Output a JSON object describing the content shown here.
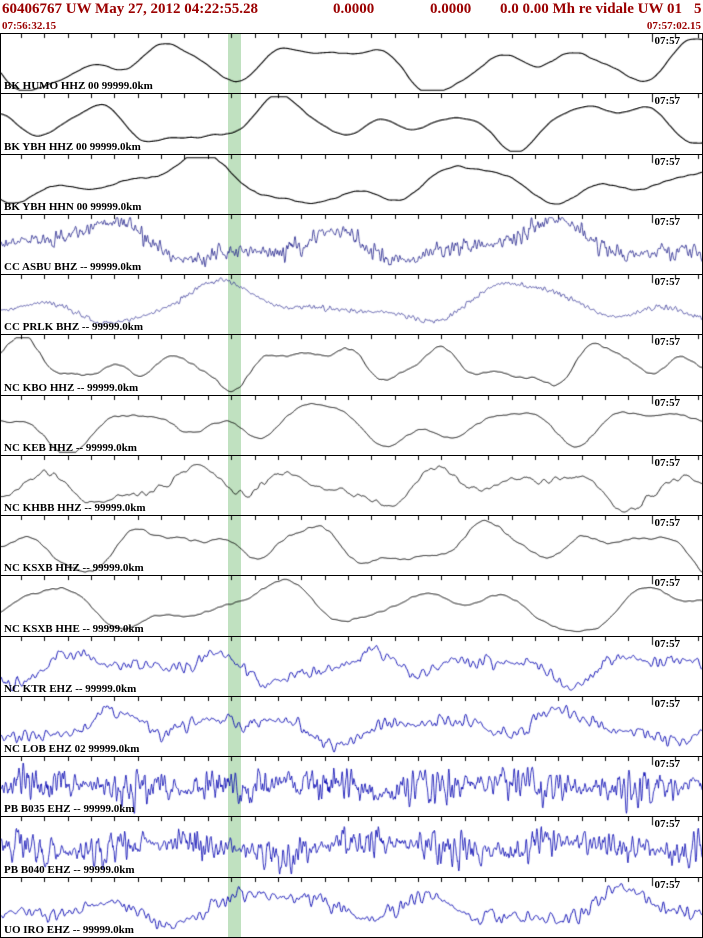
{
  "header": {
    "title": "60406767 UW May 27, 2012 04:22:55.28",
    "field1": "0.0000",
    "field2": "0.0000",
    "field3": "0.0 0.00 Mh re vidale UW 01",
    "field4": "5"
  },
  "timebar": {
    "start": "07:56:32.15",
    "end": "07:57:02.15",
    "start_sec": 32.15,
    "span_sec": 30
  },
  "colors": {
    "header_text": "#9b0000",
    "highlight_band": "rgba(130,195,130,0.5)",
    "trace_black": "#000000",
    "trace_blue": "#0000b0",
    "trace_navy": "#22228c"
  },
  "panels": [
    {
      "label": "BK HUMO HHZ 00 99999.0km",
      "minute_label": "07:57",
      "trace": {
        "seed": 11,
        "color": "#000000",
        "lw": 1.1,
        "comps": [
          [
            3.6,
            0.5
          ],
          [
            6.8,
            0.35
          ],
          [
            1.7,
            0.28
          ],
          [
            12,
            0.1
          ]
        ],
        "noise_amp": 0.03,
        "noise_smooth": 3,
        "noise_mod": 0
      }
    },
    {
      "label": "BK YBH HHZ 00 99999.0km",
      "minute_label": "07:57",
      "trace": {
        "seed": 22,
        "color": "#000000",
        "lw": 1.1,
        "comps": [
          [
            4.2,
            0.45
          ],
          [
            7.5,
            0.3
          ],
          [
            2.3,
            0.3
          ],
          [
            13,
            0.08
          ]
        ],
        "noise_amp": 0.03,
        "noise_smooth": 3,
        "noise_mod": 0
      }
    },
    {
      "label": "BK YBH HHN 00 99999.0km",
      "minute_label": "07:57",
      "trace": {
        "seed": 33,
        "color": "#000000",
        "lw": 1.1,
        "comps": [
          [
            2.6,
            0.55
          ],
          [
            5.2,
            0.3
          ],
          [
            9,
            0.15
          ],
          [
            1.3,
            0.2
          ]
        ],
        "noise_amp": 0.04,
        "noise_smooth": 3,
        "noise_mod": 0
      }
    },
    {
      "label": "CC ASBU BHZ -- 99999.0km",
      "minute_label": "07:57",
      "trace": {
        "seed": 44,
        "color": "#22228c",
        "lw": 0.8,
        "comps": [
          [
            3.1,
            0.45
          ],
          [
            6.4,
            0.25
          ],
          [
            1.5,
            0.2
          ]
        ],
        "noise_amp": 0.5,
        "noise_smooth": 0,
        "noise_mod": 4.5
      }
    },
    {
      "label": "CC PRLK BHZ -- 99999.0km",
      "minute_label": "07:57",
      "trace": {
        "seed": 55,
        "color": "#22228c",
        "lw": 0.7,
        "comps": [
          [
            2.4,
            0.5
          ],
          [
            4.6,
            0.3
          ],
          [
            8,
            0.1
          ]
        ],
        "noise_amp": 0.15,
        "noise_smooth": 0,
        "noise_mod": 3
      }
    },
    {
      "label": "NC KBO HHZ -- 99999.0km",
      "minute_label": "07:57",
      "trace": {
        "seed": 66,
        "color": "#000000",
        "lw": 1.0,
        "comps": [
          [
            4.8,
            0.4
          ],
          [
            8.5,
            0.3
          ],
          [
            2.1,
            0.25
          ],
          [
            15,
            0.12
          ]
        ],
        "noise_amp": 0.06,
        "noise_smooth": 2,
        "noise_mod": 0
      }
    },
    {
      "label": "NC KEB HHZ -- 99999.0km",
      "minute_label": "07:57",
      "trace": {
        "seed": 77,
        "color": "#000000",
        "lw": 1.0,
        "comps": [
          [
            4,
            0.45
          ],
          [
            7,
            0.3
          ],
          [
            11,
            0.15
          ],
          [
            2,
            0.2
          ]
        ],
        "noise_amp": 0.05,
        "noise_smooth": 2,
        "noise_mod": 0
      }
    },
    {
      "label": "NC KHBB HHZ -- 99999.0km",
      "minute_label": "07:57",
      "trace": {
        "seed": 88,
        "color": "#000000",
        "lw": 0.9,
        "comps": [
          [
            5.5,
            0.35
          ],
          [
            9,
            0.25
          ],
          [
            2.6,
            0.3
          ]
        ],
        "noise_amp": 0.2,
        "noise_smooth": 2,
        "noise_mod": 3.5
      }
    },
    {
      "label": "NC KSXB HHZ -- 99999.0km",
      "minute_label": "07:57",
      "trace": {
        "seed": 99,
        "color": "#000000",
        "lw": 1.0,
        "comps": [
          [
            4.4,
            0.45
          ],
          [
            7.8,
            0.3
          ],
          [
            2.2,
            0.25
          ],
          [
            14,
            0.1
          ]
        ],
        "noise_amp": 0.06,
        "noise_smooth": 2,
        "noise_mod": 0
      }
    },
    {
      "label": "NC KSXB HHE -- 99999.0km",
      "minute_label": "07:57",
      "trace": {
        "seed": 111,
        "color": "#000000",
        "lw": 1.0,
        "comps": [
          [
            3.4,
            0.5
          ],
          [
            6,
            0.3
          ],
          [
            10,
            0.12
          ],
          [
            1.6,
            0.2
          ]
        ],
        "noise_amp": 0.05,
        "noise_smooth": 2,
        "noise_mod": 0
      }
    },
    {
      "label": "NC KTR EHZ -- 99999.0km",
      "minute_label": "07:57",
      "trace": {
        "seed": 122,
        "color": "#0000b0",
        "lw": 0.9,
        "comps": [
          [
            5,
            0.3
          ],
          [
            9,
            0.2
          ],
          [
            2.5,
            0.2
          ]
        ],
        "noise_amp": 0.45,
        "noise_smooth": 1,
        "noise_mod": 6
      }
    },
    {
      "label": "NC LOB EHZ 02 99999.0km",
      "minute_label": "07:57",
      "trace": {
        "seed": 133,
        "color": "#0000b0",
        "lw": 0.9,
        "comps": [
          [
            4.5,
            0.3
          ],
          [
            8,
            0.2
          ],
          [
            2,
            0.2
          ]
        ],
        "noise_amp": 0.5,
        "noise_smooth": 1,
        "noise_mod": 5
      }
    },
    {
      "label": "PB B035 EHZ -- 99999.0km",
      "minute_label": "07:57",
      "trace": {
        "seed": 144,
        "color": "#0000b0",
        "lw": 0.8,
        "comps": [
          [
            3,
            0.15
          ]
        ],
        "noise_amp": 0.95,
        "noise_smooth": 0,
        "noise_mod": 3.5
      }
    },
    {
      "label": "PB B040 EHZ -- 99999.0km",
      "minute_label": "07:57",
      "trace": {
        "seed": 155,
        "color": "#0000b0",
        "lw": 0.8,
        "comps": [
          [
            3.5,
            0.2
          ]
        ],
        "noise_amp": 0.9,
        "noise_smooth": 0,
        "noise_mod": 4.2
      }
    },
    {
      "label": "UO IRO EHZ -- 99999.0km",
      "minute_label": "07:57",
      "trace": {
        "seed": 166,
        "color": "#0000b0",
        "lw": 0.9,
        "comps": [
          [
            4,
            0.35
          ],
          [
            7,
            0.2
          ],
          [
            1.8,
            0.25
          ]
        ],
        "noise_amp": 0.5,
        "noise_smooth": 1,
        "noise_mod": 4
      }
    }
  ]
}
